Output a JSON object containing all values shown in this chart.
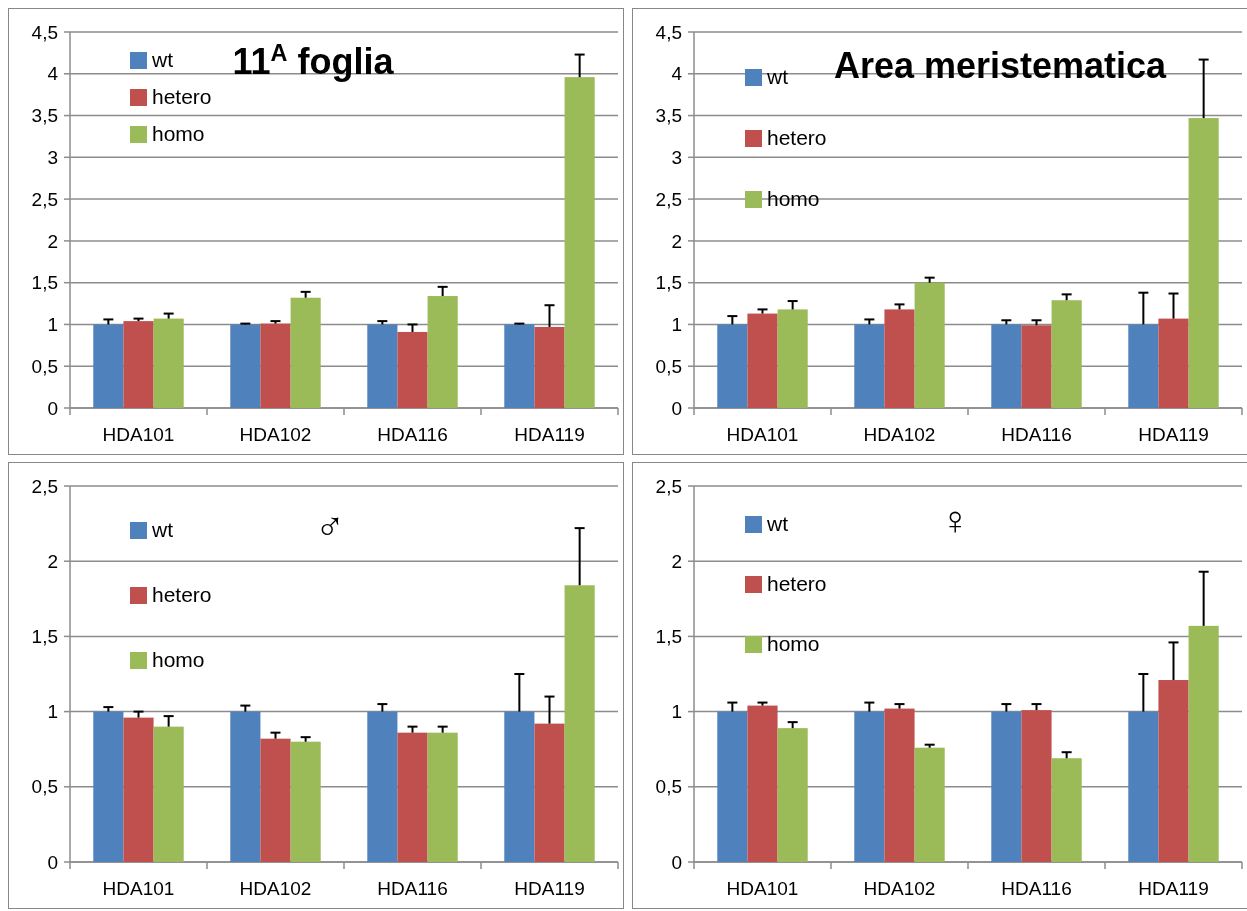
{
  "chart_data": [
    {
      "type": "bar",
      "title": "11$^{A}$ foglia",
      "categories": [
        "HDA101",
        "HDA102",
        "HDA116",
        "HDA119"
      ],
      "ylim": [
        0,
        4.5
      ],
      "yticks": [
        0,
        {
          "value": 0.5,
          "label": "0,5"
        },
        1,
        {
          "value": 1.5,
          "label": "1,5"
        },
        2,
        {
          "value": 2.5,
          "label": "2,5"
        },
        3,
        {
          "value": 3.5,
          "label": "3,5"
        },
        4,
        {
          "value": 4.5,
          "label": "4,5"
        }
      ],
      "grid": "y",
      "legend": "top left",
      "series": [
        {
          "name": "wt",
          "color": "#4f81bd",
          "values": [
            1,
            1,
            1,
            1
          ],
          "errors": [
            [
              1,
              1.06
            ],
            [
              1,
              1.01
            ],
            [
              1,
              1.04
            ],
            [
              1,
              1.01
            ]
          ]
        },
        {
          "name": "hetero",
          "color": "#c0504d",
          "values": [
            1.04,
            1.01,
            0.91,
            0.97
          ],
          "errors": [
            [
              1.04,
              1.07
            ],
            [
              1.01,
              1.04
            ],
            [
              0.91,
              1.0
            ],
            [
              0.97,
              1.23
            ]
          ]
        },
        {
          "name": "homo",
          "color": "#9bbb59",
          "values": [
            1.07,
            1.32,
            1.34,
            3.96
          ],
          "errors": [
            [
              1.07,
              1.13
            ],
            [
              1.32,
              1.39
            ],
            [
              1.34,
              1.45
            ],
            [
              3.96,
              4.23
            ]
          ]
        }
      ]
    },
    {
      "type": "bar",
      "title": "Area meristematica",
      "categories": [
        "HDA101",
        "HDA102",
        "HDA116",
        "HDA119"
      ],
      "ylim": [
        0,
        4.5
      ],
      "yticks": [
        0,
        {
          "value": 0.5,
          "label": "0,5"
        },
        1,
        {
          "value": 1.5,
          "label": "1,5"
        },
        2,
        {
          "value": 2.5,
          "label": "2,5"
        },
        3,
        {
          "value": 3.5,
          "label": "3,5"
        },
        4,
        {
          "value": 4.5,
          "label": "4,5"
        }
      ],
      "grid": "y",
      "legend": "top left",
      "series": [
        {
          "name": "wt",
          "color": "#4f81bd",
          "values": [
            1,
            1,
            1,
            1
          ],
          "errors": [
            [
              1,
              1.1
            ],
            [
              1,
              1.06
            ],
            [
              1,
              1.05
            ],
            [
              1,
              1.38
            ]
          ]
        },
        {
          "name": "hetero",
          "color": "#c0504d",
          "values": [
            1.13,
            1.18,
            0.99,
            1.07
          ],
          "errors": [
            [
              1.13,
              1.18
            ],
            [
              1.18,
              1.24
            ],
            [
              0.99,
              1.05
            ],
            [
              1.07,
              1.37
            ]
          ]
        },
        {
          "name": "homo",
          "color": "#9bbb59",
          "values": [
            1.18,
            1.5,
            1.29,
            3.47
          ],
          "errors": [
            [
              1.18,
              1.28
            ],
            [
              1.5,
              1.56
            ],
            [
              1.29,
              1.36
            ],
            [
              3.47,
              4.17
            ]
          ]
        }
      ]
    },
    {
      "type": "bar",
      "title": "♂",
      "categories": [
        "HDA101",
        "HDA102",
        "HDA116",
        "HDA119"
      ],
      "ylim": [
        0,
        2.5
      ],
      "yticks": [
        0,
        {
          "value": 0.5,
          "label": "0,5"
        },
        1,
        {
          "value": 1.5,
          "label": "1,5"
        },
        2,
        {
          "value": 2.5,
          "label": "2,5"
        }
      ],
      "grid": "y",
      "legend": "top left",
      "series": [
        {
          "name": "wt",
          "color": "#4f81bd",
          "values": [
            1,
            1,
            1,
            1
          ],
          "errors": [
            [
              1,
              1.03
            ],
            [
              1,
              1.04
            ],
            [
              1,
              1.05
            ],
            [
              1,
              1.25
            ]
          ]
        },
        {
          "name": "hetero",
          "color": "#c0504d",
          "values": [
            0.96,
            0.82,
            0.86,
            0.92
          ],
          "errors": [
            [
              0.96,
              1.0
            ],
            [
              0.82,
              0.86
            ],
            [
              0.86,
              0.9
            ],
            [
              0.92,
              1.1
            ]
          ]
        },
        {
          "name": "homo",
          "color": "#9bbb59",
          "values": [
            0.9,
            0.8,
            0.86,
            1.84
          ],
          "errors": [
            [
              0.9,
              0.97
            ],
            [
              0.8,
              0.83
            ],
            [
              0.86,
              0.9
            ],
            [
              1.84,
              2.22
            ]
          ]
        }
      ]
    },
    {
      "type": "bar",
      "title": "♀",
      "categories": [
        "HDA101",
        "HDA102",
        "HDA116",
        "HDA119"
      ],
      "ylim": [
        0,
        2.5
      ],
      "yticks": [
        0,
        {
          "value": 0.5,
          "label": "0,5"
        },
        1,
        {
          "value": 1.5,
          "label": "1,5"
        },
        2,
        {
          "value": 2.5,
          "label": "2,5"
        }
      ],
      "grid": "y",
      "legend": "top left",
      "series": [
        {
          "name": "wt",
          "color": "#4f81bd",
          "values": [
            1,
            1,
            1,
            1
          ],
          "errors": [
            [
              1,
              1.06
            ],
            [
              1,
              1.06
            ],
            [
              1,
              1.05
            ],
            [
              1,
              1.25
            ]
          ]
        },
        {
          "name": "hetero",
          "color": "#c0504d",
          "values": [
            1.04,
            1.02,
            1.01,
            1.21
          ],
          "errors": [
            [
              1.04,
              1.06
            ],
            [
              1.02,
              1.05
            ],
            [
              1.01,
              1.05
            ],
            [
              1.21,
              1.46
            ]
          ]
        },
        {
          "name": "homo",
          "color": "#9bbb59",
          "values": [
            0.89,
            0.76,
            0.69,
            1.57
          ],
          "errors": [
            [
              0.89,
              0.93
            ],
            [
              0.76,
              0.78
            ],
            [
              0.69,
              0.73
            ],
            [
              1.57,
              1.93
            ]
          ]
        }
      ]
    }
  ]
}
